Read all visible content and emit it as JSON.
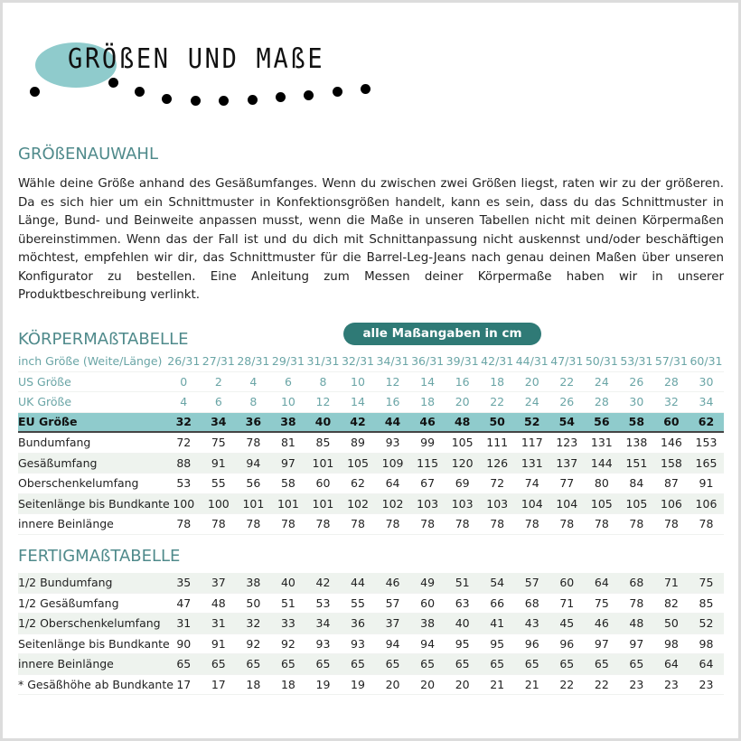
{
  "header": {
    "title": "GRÖßEN UND MAßE"
  },
  "section1": {
    "heading": "GRÖßENAUWAHL",
    "text": "Wähle deine Größe anhand des Gesäßumfanges. Wenn du zwischen zwei Größen liegst, raten wir zu der größeren. Da es sich hier um ein Schnittmuster in Konfektionsgrößen handelt, kann es sein, dass du das Schnittmuster in Länge, Bund- und Beinweite anpassen musst, wenn die Maße in unseren Tabellen nicht mit deinen Körpermaßen übereinstimmen. Wenn das der Fall ist und du dich mit Schnittanpassung nicht auskennst und/oder beschäftigen möchtest, empfehlen wir dir, das Schnittmuster für die Barrel-Leg-Jeans nach genau deinen Maßen über unseren Konfigurator zu bestellen. Eine Anleitung zum Messen deiner Körpermaße haben wir in unserer Produktbeschreibung verlinkt."
  },
  "body_table": {
    "heading": "KÖRPERMAßTABELLE",
    "badge": "alle Maßangaben in cm",
    "rows": [
      {
        "label": "inch Größe (Weite/Länge)",
        "style": "light",
        "values": [
          "26/31",
          "27/31",
          "28/31",
          "29/31",
          "31/31",
          "32/31",
          "34/31",
          "36/31",
          "39/31",
          "42/31",
          "44/31",
          "47/31",
          "50/31",
          "53/31",
          "57/31",
          "60/31"
        ]
      },
      {
        "label": "US Größe",
        "style": "light",
        "values": [
          "0",
          "2",
          "4",
          "6",
          "8",
          "10",
          "12",
          "14",
          "16",
          "18",
          "20",
          "22",
          "24",
          "26",
          "28",
          "30"
        ]
      },
      {
        "label": "UK Größe",
        "style": "light",
        "values": [
          "4",
          "6",
          "8",
          "10",
          "12",
          "14",
          "16",
          "18",
          "20",
          "22",
          "24",
          "26",
          "28",
          "30",
          "32",
          "34"
        ]
      },
      {
        "label": "EU Größe",
        "style": "eu",
        "values": [
          "32",
          "34",
          "36",
          "38",
          "40",
          "42",
          "44",
          "46",
          "48",
          "50",
          "52",
          "54",
          "56",
          "58",
          "60",
          "62"
        ]
      },
      {
        "label": "Bundumfang",
        "style": "",
        "values": [
          "72",
          "75",
          "78",
          "81",
          "85",
          "89",
          "93",
          "99",
          "105",
          "111",
          "117",
          "123",
          "131",
          "138",
          "146",
          "153"
        ]
      },
      {
        "label": "Gesäßumfang",
        "style": "shade",
        "values": [
          "88",
          "91",
          "94",
          "97",
          "101",
          "105",
          "109",
          "115",
          "120",
          "126",
          "131",
          "137",
          "144",
          "151",
          "158",
          "165"
        ]
      },
      {
        "label": "Oberschenkelumfang",
        "style": "",
        "values": [
          "53",
          "55",
          "56",
          "58",
          "60",
          "62",
          "64",
          "67",
          "69",
          "72",
          "74",
          "77",
          "80",
          "84",
          "87",
          "91"
        ]
      },
      {
        "label": "Seitenlänge bis Bundkante",
        "style": "shade",
        "values": [
          "100",
          "100",
          "101",
          "101",
          "101",
          "102",
          "102",
          "103",
          "103",
          "103",
          "104",
          "104",
          "105",
          "105",
          "106",
          "106"
        ]
      },
      {
        "label": "innere Beinlänge",
        "style": "",
        "values": [
          "78",
          "78",
          "78",
          "78",
          "78",
          "78",
          "78",
          "78",
          "78",
          "78",
          "78",
          "78",
          "78",
          "78",
          "78",
          "78"
        ]
      }
    ]
  },
  "finished_table": {
    "heading": "FERTIGMAßTABELLE",
    "rows": [
      {
        "label": "1/2 Bundumfang",
        "style": "shade",
        "values": [
          "35",
          "37",
          "38",
          "40",
          "42",
          "44",
          "46",
          "49",
          "51",
          "54",
          "57",
          "60",
          "64",
          "68",
          "71",
          "75"
        ]
      },
      {
        "label": "1/2 Gesäßumfang",
        "style": "",
        "values": [
          "47",
          "48",
          "50",
          "51",
          "53",
          "55",
          "57",
          "60",
          "63",
          "66",
          "68",
          "71",
          "75",
          "78",
          "82",
          "85"
        ]
      },
      {
        "label": "1/2 Oberschenkelumfang",
        "style": "shade",
        "values": [
          "31",
          "31",
          "32",
          "33",
          "34",
          "36",
          "37",
          "38",
          "40",
          "41",
          "43",
          "45",
          "46",
          "48",
          "50",
          "52"
        ]
      },
      {
        "label": "Seitenlänge bis Bundkante",
        "style": "",
        "values": [
          "90",
          "91",
          "92",
          "92",
          "93",
          "93",
          "94",
          "94",
          "95",
          "95",
          "96",
          "96",
          "97",
          "97",
          "98",
          "98"
        ]
      },
      {
        "label": "innere Beinlänge",
        "style": "shade",
        "values": [
          "65",
          "65",
          "65",
          "65",
          "65",
          "65",
          "65",
          "65",
          "65",
          "65",
          "65",
          "65",
          "65",
          "65",
          "64",
          "64"
        ]
      },
      {
        "label": "* Gesäßhöhe ab Bundkante",
        "style": "",
        "values": [
          "17",
          "17",
          "18",
          "18",
          "19",
          "19",
          "20",
          "20",
          "20",
          "21",
          "21",
          "22",
          "22",
          "23",
          "23",
          "23"
        ]
      }
    ]
  },
  "colors": {
    "accent": "#4f8a8b",
    "badge": "#2f7a76",
    "eu_band": "#8fcbcc",
    "row_shade": "#eef3ee"
  }
}
